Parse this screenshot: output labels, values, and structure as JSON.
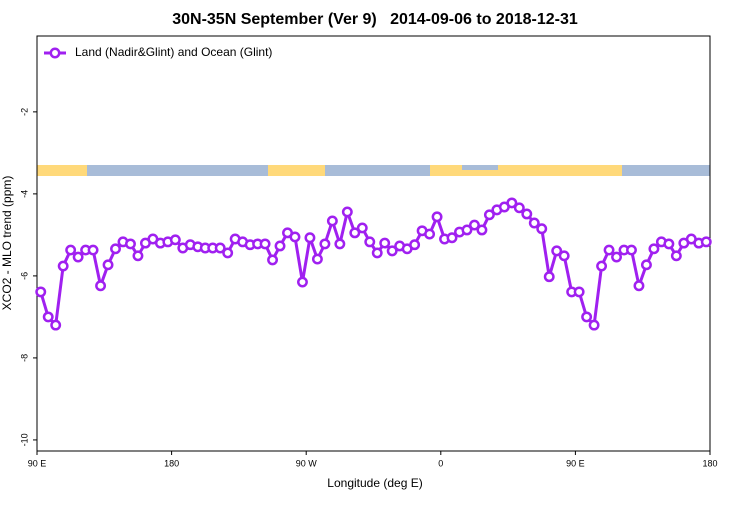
{
  "chart_data": {
    "type": "line",
    "title": "30N-35N September (Ver 9)   2014-09-06 to 2018-12-31",
    "x_label": "Longitude (deg E)",
    "y_label": "XCO2 - MLO trend (ppm)",
    "xlim": [
      90,
      540
    ],
    "ylim": [
      -10.27,
      -0.15
    ],
    "xticks": [
      {
        "value": 90,
        "label": "90 E"
      },
      180,
      {
        "value": 270,
        "label": "90 W"
      },
      {
        "value": 360,
        "label": "0"
      },
      {
        "value": 450,
        "label": "90 E"
      },
      {
        "value": 540,
        "label": "180"
      }
    ],
    "yticks": [
      -2,
      -4,
      -6,
      -8,
      -10
    ],
    "legend": "top-left",
    "x": [
      92.5,
      97.5,
      102.5,
      107.5,
      112.5,
      117.5,
      122.5,
      127.5,
      132.5,
      137.5,
      142.5,
      147.5,
      152.5,
      157.5,
      162.5,
      167.5,
      172.5,
      177.5,
      182.5,
      187.5,
      192.5,
      197.5,
      202.5,
      207.5,
      212.5,
      217.5,
      222.5,
      227.5,
      232.5,
      237.5,
      242.5,
      247.5,
      252.5,
      257.5,
      262.5,
      267.5,
      272.5,
      277.5,
      282.5,
      287.5,
      292.5,
      297.5,
      302.5,
      307.5,
      312.5,
      317.5,
      322.5,
      327.5,
      332.5,
      337.5,
      342.5,
      347.5,
      352.5,
      357.5,
      362.5,
      367.5,
      372.5,
      377.5,
      382.5,
      387.5,
      392.5,
      397.5,
      402.5,
      407.5,
      412.5,
      417.5,
      422.5,
      427.5,
      432.5,
      437.5,
      442.5,
      447.5,
      452.5,
      457.5,
      462.5,
      467.5,
      472.5,
      477.5,
      482.5,
      487.5,
      492.5,
      497.5,
      502.5,
      507.5,
      512.5,
      517.5,
      522.5,
      527.5,
      532.5,
      537.5
    ],
    "series": [
      {
        "name": "Land (Nadir&Glint) and Ocean (Glint)",
        "color": "#a020f0",
        "values": [
          -6.39,
          -7.0,
          -7.2,
          -5.76,
          -5.37,
          -5.54,
          -5.37,
          -5.37,
          -6.24,
          -5.73,
          -5.34,
          -5.17,
          -5.22,
          -5.51,
          -5.2,
          -5.1,
          -5.2,
          -5.17,
          -5.12,
          -5.32,
          -5.24,
          -5.29,
          -5.32,
          -5.32,
          -5.32,
          -5.44,
          -5.1,
          -5.17,
          -5.24,
          -5.22,
          -5.22,
          -5.61,
          -5.27,
          -4.95,
          -5.05,
          -6.15,
          -5.07,
          -5.59,
          -5.22,
          -4.66,
          -5.22,
          -4.44,
          -4.95,
          -4.83,
          -5.17,
          -5.44,
          -5.2,
          -5.39,
          -5.27,
          -5.34,
          -5.24,
          -4.9,
          -4.98,
          -4.56,
          -5.1,
          -5.07,
          -4.93,
          -4.88,
          -4.76,
          -4.88,
          -4.51,
          -4.39,
          -4.32,
          -4.22,
          -4.34,
          -4.49,
          -4.71,
          -4.85,
          -6.02,
          -5.39,
          -5.51,
          -6.39,
          -6.39,
          -7.0,
          -7.2,
          -5.76,
          -5.37,
          -5.54,
          -5.37,
          -5.37,
          -6.24,
          -5.73,
          -5.34,
          -5.17,
          -5.22,
          -5.51,
          -5.2,
          -5.1,
          -5.2,
          -5.17
        ]
      }
    ]
  }
}
